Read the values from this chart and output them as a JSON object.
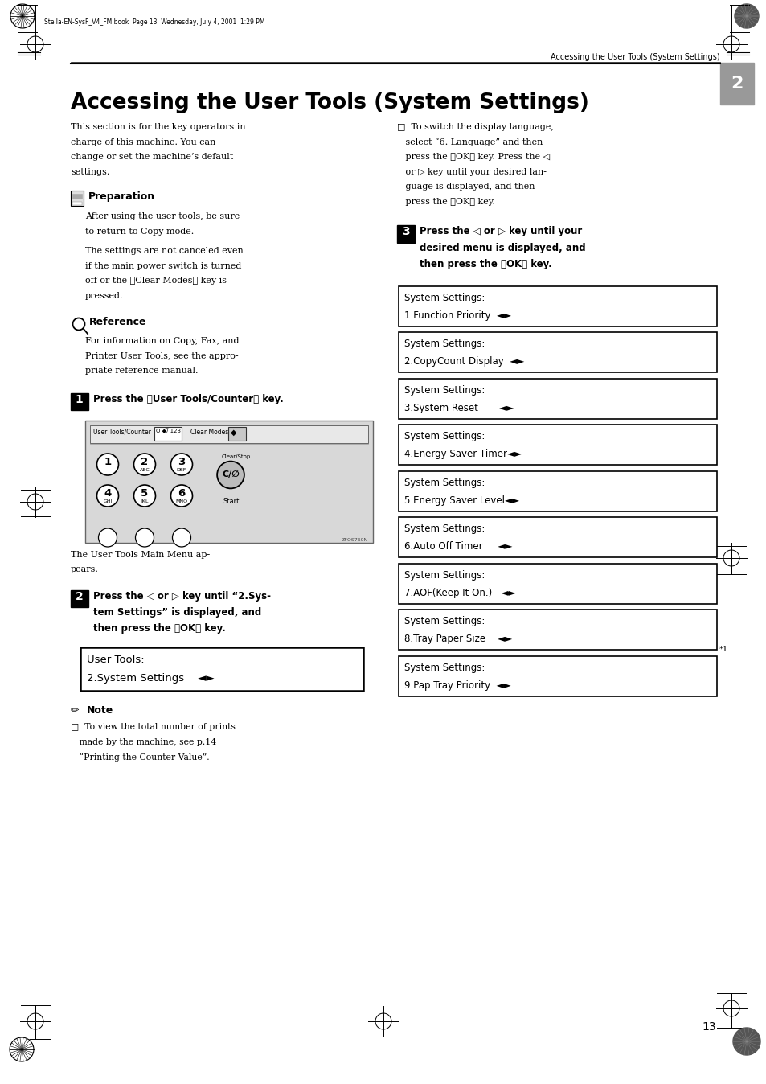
{
  "bg_color": "#ffffff",
  "page_width": 9.54,
  "page_height": 13.48,
  "header_text": "Accessing the User Tools (System Settings)",
  "file_info": "Stella-EN-SysF_V4_FM.book  Page 13  Wednesday, July 4, 2001  1:29 PM",
  "title": "Accessing the User Tools (System Settings)",
  "preparation_label": "Preparation",
  "reference_label": "Reference",
  "step1_text": "Press the 【User Tools/Counter】 key.",
  "step1_caption_lines": [
    "The User Tools Main Menu ap-",
    "pears."
  ],
  "step2_lines": [
    "Press the ◁ or ▷ key until “2.Sys-",
    "tem Settings” is displayed, and",
    "then press the 【OK】 key."
  ],
  "lcd2_line1": "User Tools:",
  "lcd2_line2": "2.System Settings    ◄►",
  "note_label": "Note",
  "right_intro_lines": [
    "□  To switch the display language,",
    "   select “6. Language” and then",
    "   press the 【OK】 key. Press the ◁",
    "   or ▷ key until your desired lan-",
    "   guage is displayed, and then",
    "   press the 【OK】 key."
  ],
  "step3_lines": [
    "Press the ◁ or ▷ key until your",
    "desired menu is displayed, and",
    "then press the 【OK】 key."
  ],
  "lcd_screens": [
    [
      "System Settings:",
      "1.Function Priority  ◄►"
    ],
    [
      "System Settings:",
      "2.CopyCount Display  ◄►"
    ],
    [
      "System Settings:",
      "3.System Reset       ◄►"
    ],
    [
      "System Settings:",
      "4.Energy Saver Timer◄►"
    ],
    [
      "System Settings:",
      "5.Energy Saver Level◄►"
    ],
    [
      "System Settings:",
      "6.Auto Off Timer     ◄►"
    ],
    [
      "System Settings:",
      "7.AOF(Keep It On.)   ◄►"
    ],
    [
      "System Settings:",
      "8.Tray Paper Size    ◄►"
    ],
    [
      "System Settings:",
      "9.Pap.Tray Priority  ◄►"
    ]
  ],
  "footnote": "*1",
  "page_number": "13",
  "tab_number": "2"
}
